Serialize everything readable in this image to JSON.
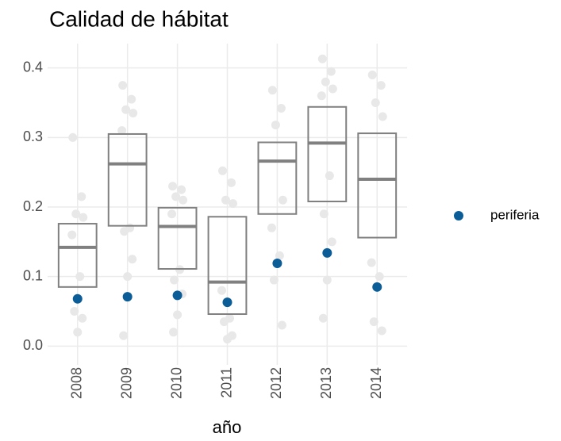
{
  "chart_data": {
    "type": "box",
    "title": "Calidad de hábitat",
    "x_label": "año",
    "categories": [
      "2008",
      "2009",
      "2010",
      "2011",
      "2012",
      "2013",
      "2014"
    ],
    "boxes": [
      {
        "q1": 0.085,
        "median": 0.142,
        "q3": 0.176
      },
      {
        "q1": 0.173,
        "median": 0.262,
        "q3": 0.305
      },
      {
        "q1": 0.111,
        "median": 0.172,
        "q3": 0.199
      },
      {
        "q1": 0.046,
        "median": 0.092,
        "q3": 0.186
      },
      {
        "q1": 0.19,
        "median": 0.266,
        "q3": 0.293
      },
      {
        "q1": 0.208,
        "median": 0.292,
        "q3": 0.344
      },
      {
        "q1": 0.156,
        "median": 0.24,
        "q3": 0.306
      }
    ],
    "box_color": "#808080",
    "points": [
      [
        0.3,
        0.215,
        0.19,
        0.185,
        0.16,
        0.1,
        0.05,
        0.04,
        0.02
      ],
      [
        0.375,
        0.355,
        0.34,
        0.335,
        0.31,
        0.17,
        0.165,
        0.125,
        0.1,
        0.015
      ],
      [
        0.23,
        0.225,
        0.215,
        0.21,
        0.19,
        0.11,
        0.095,
        0.075,
        0.045,
        0.02
      ],
      [
        0.252,
        0.235,
        0.21,
        0.205,
        0.08,
        0.04,
        0.035,
        0.015,
        0.01
      ],
      [
        0.368,
        0.342,
        0.318,
        0.21,
        0.17,
        0.13,
        0.095,
        0.03
      ],
      [
        0.413,
        0.395,
        0.38,
        0.37,
        0.36,
        0.245,
        0.19,
        0.15,
        0.095,
        0.04
      ],
      [
        0.39,
        0.375,
        0.35,
        0.33,
        0.12,
        0.1,
        0.035,
        0.022
      ]
    ],
    "points_color": "#e8e8e8",
    "series": [
      {
        "name": "periferia",
        "color": "#0b5d98",
        "values": [
          0.068,
          0.071,
          0.073,
          0.063,
          0.119,
          0.134,
          0.085
        ]
      }
    ],
    "ylim": [
      -0.027,
      0.435
    ],
    "yticks": [
      {
        "value": 0,
        "label": "0.0"
      },
      0.1,
      0.2,
      0.3,
      0.4
    ],
    "grid": true
  }
}
